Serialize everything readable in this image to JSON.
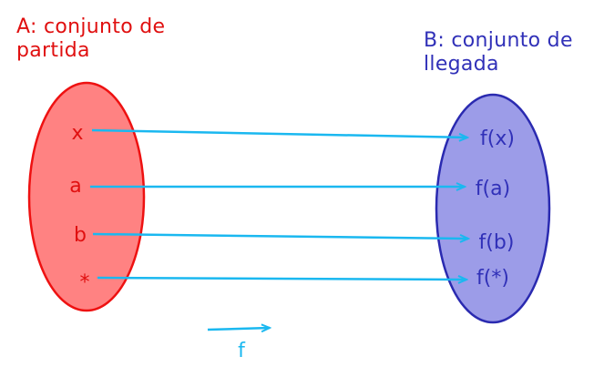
{
  "set_a": {
    "title_line1": "A: conjunto de",
    "title_line2": "partida",
    "elements": [
      "x",
      "a",
      "b",
      "*"
    ]
  },
  "set_b": {
    "title_line1": "B: conjunto de",
    "title_line2": "llegada",
    "elements": [
      "f(x)",
      "f(a)",
      "f(b)",
      "f(*)"
    ]
  },
  "function_label": "f",
  "colors": {
    "set_a_text": "#e01010",
    "set_a_fill": "#ff8282",
    "set_a_stroke": "#ee1111",
    "set_b_text": "#3030b8",
    "set_b_fill": "#9c9ce8",
    "set_b_stroke": "#2a2ab0",
    "arrow": "#1ab8f0"
  }
}
